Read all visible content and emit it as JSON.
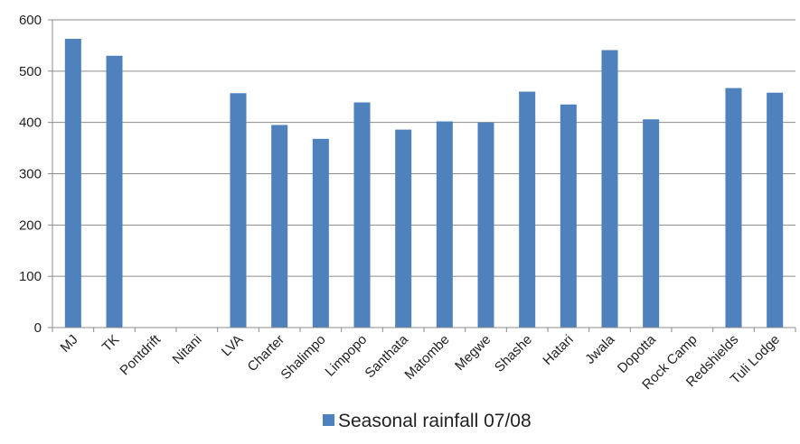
{
  "chart_data": {
    "type": "bar",
    "categories": [
      "MJ",
      "TK",
      "Pontdrift",
      "Nitani",
      "LVA",
      "Charter",
      "Shalimpo",
      "Limpopo",
      "Santhata",
      "Matombe",
      "Megwe",
      "Shashe",
      "Hatari",
      "Jwala",
      "Dopotta",
      "Rock Camp",
      "Redshields",
      "Tuli Lodge"
    ],
    "series": [
      {
        "name": "Seasonal rainfall 07/08",
        "values": [
          563,
          530,
          null,
          null,
          457,
          395,
          368,
          439,
          386,
          402,
          400,
          460,
          435,
          541,
          406,
          null,
          467,
          458
        ],
        "color": "#4f81bd"
      }
    ],
    "yticks": [
      "0",
      "100",
      "200",
      "300",
      "400",
      "500",
      "600"
    ],
    "ylim": [
      0,
      600
    ],
    "grid": true,
    "legend": "bottom"
  }
}
